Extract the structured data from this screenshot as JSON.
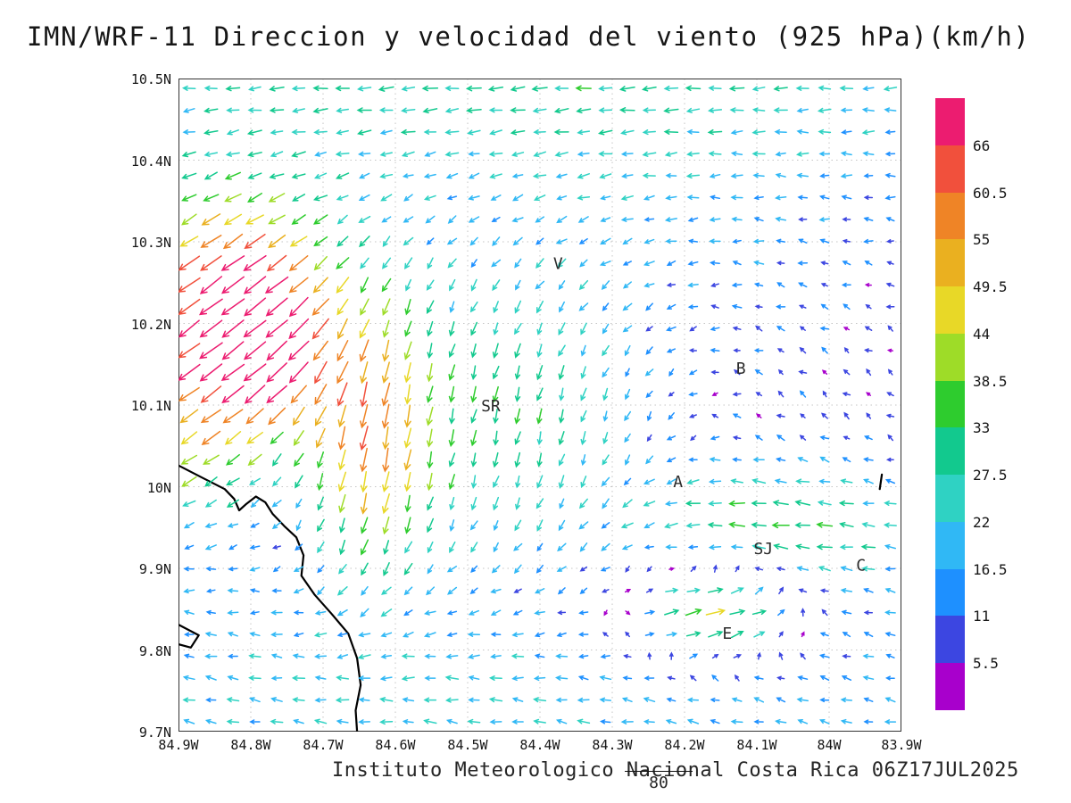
{
  "title": "IMN/WRF-11 Direccion y velocidad del viento (925 hPa)(km/h)",
  "footer": {
    "credit": "Instituto Meteorologico Nacional Costa Rica 06Z17JUL2025",
    "reference_vector_label": "80"
  },
  "chart_data": {
    "type": "quiver",
    "title": "IMN/WRF-11 Direccion y velocidad del viento (925 hPa)(km/h)",
    "variable": "Direccion y velocidad del viento",
    "level": "925 hPa",
    "units": "km/h",
    "model": "IMN/WRF-11",
    "valid_time": "06Z17JUL2025",
    "x_tick_labels": [
      "84.9W",
      "84.8W",
      "84.7W",
      "84.6W",
      "84.5W",
      "84.4W",
      "84.3W",
      "84.2W",
      "84.1W",
      "84W",
      "83.9W"
    ],
    "y_tick_labels": [
      "10.5N",
      "10.4N",
      "10.3N",
      "10.2N",
      "10.1N",
      "10N",
      "9.9N",
      "9.8N",
      "9.7N"
    ],
    "lon_range": [
      -84.9,
      -83.9
    ],
    "lat_range": [
      9.7,
      10.5
    ],
    "grid": true,
    "colorbar": {
      "position": "right",
      "levels": [
        5.5,
        11,
        16.5,
        22,
        27.5,
        33,
        38.5,
        44,
        49.5,
        55,
        60.5,
        66
      ],
      "colors": [
        "#a800cc",
        "#3c46e1",
        "#1e90ff",
        "#30b8f5",
        "#2fd2c3",
        "#12c98e",
        "#2ecc2e",
        "#9edc28",
        "#e8d827",
        "#eab020",
        "#ef8426",
        "#f1503c",
        "#ec1c70"
      ]
    },
    "stations": [
      {
        "label": "V",
        "lon": -84.375,
        "lat": 10.273
      },
      {
        "label": "B",
        "lon": -84.122,
        "lat": 10.145
      },
      {
        "label": "SR",
        "lon": -84.468,
        "lat": 10.099
      },
      {
        "label": "A",
        "lon": -84.209,
        "lat": 10.006
      },
      {
        "label": "SJ",
        "lon": -84.091,
        "lat": 9.924
      },
      {
        "label": "C",
        "lon": -83.956,
        "lat": 9.904
      },
      {
        "label": "E",
        "lon": -84.141,
        "lat": 9.82
      }
    ],
    "coastlines": [
      [
        [
          -84.9,
          10.026
        ],
        [
          -84.865,
          10.01
        ],
        [
          -84.836,
          9.997
        ],
        [
          -84.823,
          9.985
        ],
        [
          -84.816,
          9.971
        ],
        [
          -84.806,
          9.979
        ],
        [
          -84.793,
          9.988
        ],
        [
          -84.78,
          9.981
        ],
        [
          -84.77,
          9.967
        ],
        [
          -84.754,
          9.952
        ],
        [
          -84.737,
          9.938
        ],
        [
          -84.727,
          9.916
        ],
        [
          -84.73,
          9.891
        ],
        [
          -84.712,
          9.868
        ],
        [
          -84.688,
          9.844
        ],
        [
          -84.665,
          9.82
        ],
        [
          -84.653,
          9.79
        ],
        [
          -84.648,
          9.757
        ],
        [
          -84.655,
          9.726
        ],
        [
          -84.653,
          9.7
        ]
      ],
      [
        [
          -84.9,
          9.831
        ],
        [
          -84.872,
          9.818
        ],
        [
          -84.883,
          9.803
        ],
        [
          -84.9,
          9.807
        ]
      ],
      [
        [
          -83.927,
          10.015
        ],
        [
          -83.93,
          9.997
        ]
      ]
    ],
    "reference_vector": {
      "speed": 80,
      "label": "80"
    },
    "wind_field": {
      "grid": {
        "nx": 33,
        "ny": 30,
        "lon_min": -84.885,
        "lon_max": -83.915,
        "lat_min": 9.712,
        "lat_max": 10.488
      },
      "base": {
        "u": -4,
        "v": 1
      },
      "jitter": {
        "amp": 3.5
      },
      "features": [
        {
          "type": "gauss",
          "cx": -84.45,
          "cy": 10.56,
          "sx": 0.6,
          "sy": 0.16,
          "u": -28,
          "v": -3
        },
        {
          "type": "gauss",
          "cx": -84.83,
          "cy": 10.24,
          "sx": 0.1,
          "sy": 0.09,
          "u": -46,
          "v": -38
        },
        {
          "type": "gauss",
          "cx": -84.88,
          "cy": 10.07,
          "sx": 0.07,
          "sy": 0.09,
          "u": -28,
          "v": -22
        },
        {
          "type": "gauss",
          "cx": -84.77,
          "cy": 10.15,
          "sx": 0.06,
          "sy": 0.07,
          "u": -26,
          "v": -22
        },
        {
          "type": "gauss",
          "cx": -84.64,
          "cy": 10.06,
          "sx": 0.065,
          "sy": 0.13,
          "u": -4,
          "v": -44
        },
        {
          "type": "gauss",
          "cx": -84.46,
          "cy": 10.1,
          "sx": 0.16,
          "sy": 0.15,
          "u": -2,
          "v": -26
        },
        {
          "type": "vortex",
          "cx": -84.22,
          "cy": 10.08,
          "k": 60,
          "r": 0.16
        },
        {
          "type": "gauss",
          "cx": -84.5,
          "cy": 9.74,
          "sx": 0.65,
          "sy": 0.12,
          "u": -18,
          "v": 3
        },
        {
          "type": "gauss",
          "cx": -84.16,
          "cy": 9.85,
          "sx": 0.08,
          "sy": 0.045,
          "u": 58,
          "v": 8
        },
        {
          "type": "gauss",
          "cx": -84.1,
          "cy": 9.95,
          "sx": 0.15,
          "sy": 0.06,
          "u": -34,
          "v": -2
        }
      ]
    }
  }
}
